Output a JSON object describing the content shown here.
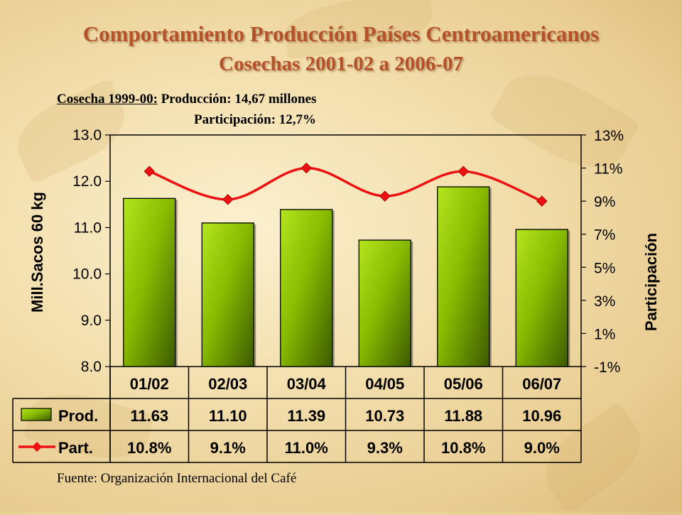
{
  "slide": {
    "title": "Comportamiento Producción Países Centroamericanos",
    "subtitle": "Cosechas 2001-02 a 2006-07",
    "note_label": "Cosecha 1999-00:",
    "note_production": "Producción: 14,67 millones",
    "note_share": "Participación: 12,7%",
    "source": "Fuente: Organización Internacional del Café"
  },
  "chart_data": {
    "type": "bar",
    "categories": [
      "01/02",
      "02/03",
      "03/04",
      "04/05",
      "05/06",
      "06/07"
    ],
    "ylabel": "Mill.Sacos 60 kg",
    "y2label": "Participación",
    "ylim": [
      8.0,
      13.0
    ],
    "y2lim": [
      -1,
      13
    ],
    "yticks": [
      "8.0",
      "9.0",
      "10.0",
      "11.0",
      "12.0",
      "13.0"
    ],
    "y2ticks": [
      "-1%",
      "1%",
      "3%",
      "5%",
      "7%",
      "9%",
      "11%",
      "13%"
    ],
    "colors": {
      "bar": "#8fc400",
      "line": "#ee1111"
    },
    "series": [
      {
        "name": "Prod.",
        "type": "bar",
        "axis": "left",
        "values": [
          11.63,
          11.1,
          11.39,
          10.73,
          11.88,
          10.96
        ],
        "labels": [
          "11.63",
          "11.10",
          "11.39",
          "10.73",
          "11.88",
          "10.96"
        ]
      },
      {
        "name": "Part.",
        "type": "line",
        "axis": "right",
        "values": [
          10.8,
          9.1,
          11.0,
          9.3,
          10.8,
          9.0
        ],
        "labels": [
          "10.8%",
          "9.1%",
          "11.0%",
          "9.3%",
          "10.8%",
          "9.0%"
        ]
      }
    ]
  }
}
